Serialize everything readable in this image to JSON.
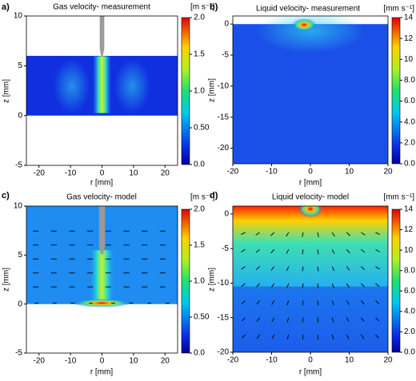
{
  "chart_data": [
    {
      "type": "contour",
      "panel_label": "a)",
      "title": "Gas velocity- measurement",
      "x_label": "r [mm]",
      "y_label": "z [mm]",
      "xlim": [
        -24,
        24
      ],
      "xticks": [
        -20,
        -10,
        0,
        10,
        20
      ],
      "ylim": [
        -5,
        10
      ],
      "yticks": [
        -5,
        0,
        5,
        10
      ],
      "colorbar_label": "[m s⁻¹]",
      "colorbar_lim": [
        0,
        2
      ],
      "colorbar_ticks": [
        {
          "value": 0,
          "label": "0.0"
        },
        {
          "value": 0.5,
          "label": "0.50"
        },
        {
          "value": 1,
          "label": "1.0"
        },
        {
          "value": 1.5,
          "label": "1.5"
        },
        {
          "value": 2,
          "label": "2.0"
        }
      ]
    },
    {
      "type": "contour",
      "panel_label": "b)",
      "title": "Liquid velocity- measurement",
      "x_label": "r [mm]",
      "y_label": "z [mm]",
      "xlim": [
        -20,
        20
      ],
      "xticks": [
        -20,
        -10,
        0,
        10,
        20
      ],
      "ylim": [
        -22.5,
        1.3
      ],
      "yticks": [
        -20,
        -15,
        -10,
        -5,
        0
      ],
      "colorbar_label": "[mm s⁻¹]",
      "colorbar_lim": [
        0,
        14
      ],
      "colorbar_ticks": [
        {
          "value": 0,
          "label": "0.0"
        },
        {
          "value": 2,
          "label": "2.0"
        },
        {
          "value": 4,
          "label": "4.0"
        },
        {
          "value": 6,
          "label": "6.0"
        },
        {
          "value": 8,
          "label": "8.0"
        },
        10,
        12,
        14
      ]
    },
    {
      "type": "contour",
      "panel_label": "c)",
      "title": "Gas velocity- model",
      "x_label": "r [mm]",
      "y_label": "z [mm]",
      "xlim": [
        -24,
        24
      ],
      "xticks": [
        -20,
        -10,
        0,
        10,
        20
      ],
      "ylim": [
        -5,
        10
      ],
      "yticks": [
        -5,
        0,
        5,
        10
      ],
      "colorbar_label": "[m s⁻¹]",
      "colorbar_lim": [
        0,
        2
      ],
      "colorbar_ticks": [
        {
          "value": 0,
          "label": "0.0"
        },
        {
          "value": 0.5,
          "label": "0.50"
        },
        {
          "value": 1,
          "label": "1.0"
        },
        {
          "value": 1.5,
          "label": "1.5"
        },
        {
          "value": 2,
          "label": "2.0"
        }
      ]
    },
    {
      "type": "contour",
      "panel_label": "d)",
      "title": "Liquid velocity- model",
      "x_label": "r [mm]",
      "y_label": "z [mm]",
      "xlim": [
        -20,
        20
      ],
      "xticks": [
        -20,
        -10,
        0,
        10,
        20
      ],
      "ylim": [
        -20,
        1.15
      ],
      "yticks": [
        -20,
        -15,
        -10,
        -5,
        0
      ],
      "colorbar_label": "[mm s⁻¹]",
      "colorbar_lim": [
        0,
        14
      ],
      "colorbar_ticks": [
        {
          "value": 0,
          "label": "0.0"
        },
        {
          "value": 2,
          "label": "2.0"
        },
        {
          "value": 4,
          "label": "4.0"
        },
        {
          "value": 6,
          "label": "6.0"
        },
        {
          "value": 8,
          "label": "8.0"
        },
        10,
        12,
        14
      ]
    }
  ]
}
